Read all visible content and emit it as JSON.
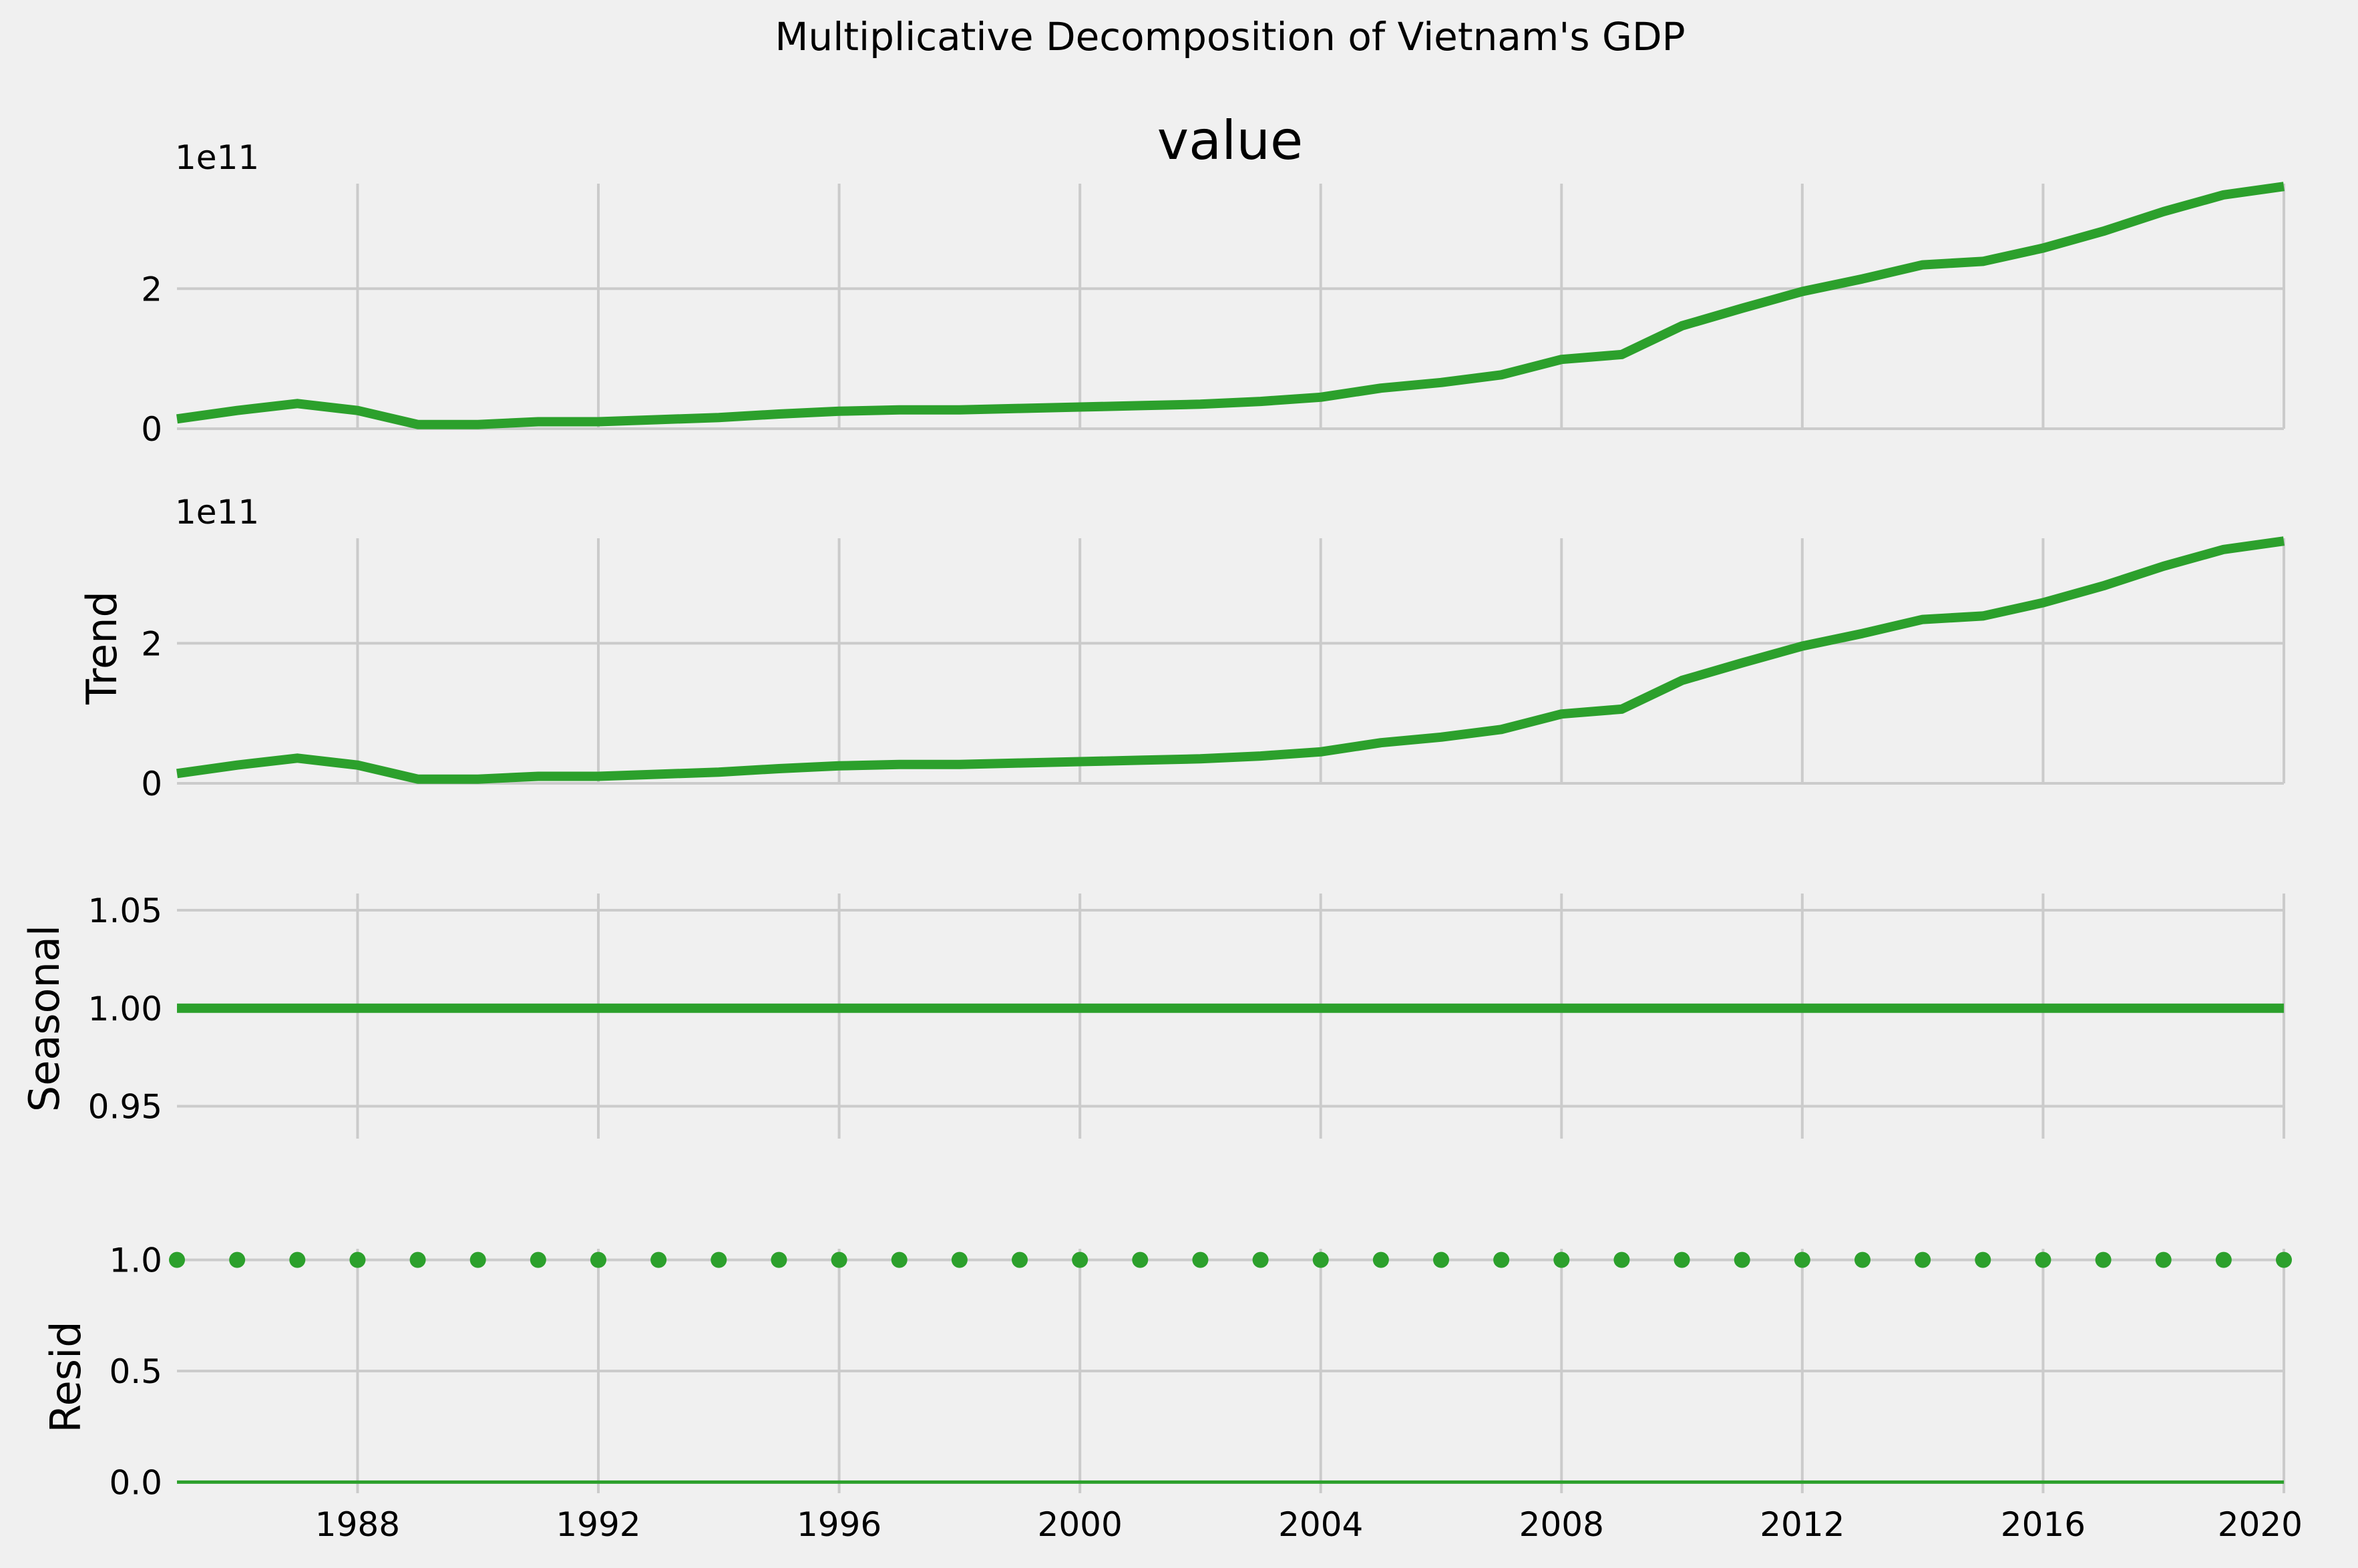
{
  "figure": {
    "suptitle": "Multiplicative Decomposition of Vietnam's GDP",
    "series_color": "#2ca02c",
    "background": "#f0f0f0",
    "grid_color": "#cbcbcb"
  },
  "chart_data": [
    {
      "type": "line",
      "title": "value",
      "ylabel": "",
      "offset_label": "1e11",
      "xlim": [
        1985,
        2020
      ],
      "ylim": [
        0,
        3.5
      ],
      "yticks": [
        0,
        2
      ],
      "ytick_labels": [
        "0",
        "2"
      ],
      "xticks": [
        1988,
        1992,
        1996,
        2000,
        2004,
        2008,
        2012,
        2016,
        2020
      ],
      "xtick_labels": [],
      "grid": true,
      "x": [
        1985,
        1986,
        1987,
        1988,
        1989,
        1990,
        1991,
        1992,
        1993,
        1994,
        1995,
        1996,
        1997,
        1998,
        1999,
        2000,
        2001,
        2002,
        2003,
        2004,
        2005,
        2006,
        2007,
        2008,
        2009,
        2010,
        2011,
        2012,
        2013,
        2014,
        2015,
        2016,
        2017,
        2018,
        2019,
        2020
      ],
      "y": [
        0.14,
        0.26,
        0.36,
        0.26,
        0.06,
        0.06,
        0.1,
        0.1,
        0.13,
        0.16,
        0.21,
        0.25,
        0.27,
        0.27,
        0.29,
        0.31,
        0.33,
        0.35,
        0.39,
        0.45,
        0.58,
        0.66,
        0.77,
        0.99,
        1.06,
        1.47,
        1.72,
        1.96,
        2.14,
        2.34,
        2.39,
        2.58,
        2.82,
        3.1,
        3.34,
        3.46
      ]
    },
    {
      "type": "line",
      "title": "",
      "ylabel": "Trend",
      "offset_label": "1e11",
      "xlim": [
        1985,
        2020
      ],
      "ylim": [
        0,
        3.5
      ],
      "yticks": [
        0,
        2
      ],
      "ytick_labels": [
        "0",
        "2"
      ],
      "xticks": [
        1988,
        1992,
        1996,
        2000,
        2004,
        2008,
        2012,
        2016,
        2020
      ],
      "xtick_labels": [],
      "grid": true,
      "x": [
        1985,
        1986,
        1987,
        1988,
        1989,
        1990,
        1991,
        1992,
        1993,
        1994,
        1995,
        1996,
        1997,
        1998,
        1999,
        2000,
        2001,
        2002,
        2003,
        2004,
        2005,
        2006,
        2007,
        2008,
        2009,
        2010,
        2011,
        2012,
        2013,
        2014,
        2015,
        2016,
        2017,
        2018,
        2019,
        2020
      ],
      "y": [
        0.14,
        0.26,
        0.36,
        0.26,
        0.06,
        0.06,
        0.1,
        0.1,
        0.13,
        0.16,
        0.21,
        0.25,
        0.27,
        0.27,
        0.29,
        0.31,
        0.33,
        0.35,
        0.39,
        0.45,
        0.58,
        0.66,
        0.77,
        0.99,
        1.06,
        1.47,
        1.72,
        1.96,
        2.14,
        2.34,
        2.39,
        2.58,
        2.82,
        3.1,
        3.34,
        3.46
      ]
    },
    {
      "type": "line",
      "title": "",
      "ylabel": "Seasonal",
      "offset_label": "",
      "xlim": [
        1985,
        2020
      ],
      "ylim": [
        0.9335,
        1.0585
      ],
      "yticks": [
        0.95,
        1.0,
        1.05
      ],
      "ytick_labels": [
        "0.95",
        "1.00",
        "1.05"
      ],
      "xticks": [
        1988,
        1992,
        1996,
        2000,
        2004,
        2008,
        2012,
        2016,
        2020
      ],
      "xtick_labels": [],
      "grid": true,
      "x": [
        1985,
        1986,
        1987,
        1988,
        1989,
        1990,
        1991,
        1992,
        1993,
        1994,
        1995,
        1996,
        1997,
        1998,
        1999,
        2000,
        2001,
        2002,
        2003,
        2004,
        2005,
        2006,
        2007,
        2008,
        2009,
        2010,
        2011,
        2012,
        2013,
        2014,
        2015,
        2016,
        2017,
        2018,
        2019,
        2020
      ],
      "y": [
        1,
        1,
        1,
        1,
        1,
        1,
        1,
        1,
        1,
        1,
        1,
        1,
        1,
        1,
        1,
        1,
        1,
        1,
        1,
        1,
        1,
        1,
        1,
        1,
        1,
        1,
        1,
        1,
        1,
        1,
        1,
        1,
        1,
        1,
        1,
        1
      ]
    },
    {
      "type": "scatter",
      "title": "",
      "ylabel": "Resid",
      "offset_label": "",
      "xlim": [
        1985,
        2020
      ],
      "ylim": [
        -0.05,
        1.05
      ],
      "yticks": [
        0.0,
        0.5,
        1.0
      ],
      "ytick_labels": [
        "0.0",
        "0.5",
        "1.0"
      ],
      "xticks": [
        1988,
        1992,
        1996,
        2000,
        2004,
        2008,
        2012,
        2016,
        2020
      ],
      "xtick_labels": [
        "1988",
        "1992",
        "1996",
        "2000",
        "2004",
        "2008",
        "2012",
        "2016",
        "2020"
      ],
      "grid": true,
      "x": [
        1985,
        1986,
        1987,
        1988,
        1989,
        1990,
        1991,
        1992,
        1993,
        1994,
        1995,
        1996,
        1997,
        1998,
        1999,
        2000,
        2001,
        2002,
        2003,
        2004,
        2005,
        2006,
        2007,
        2008,
        2009,
        2010,
        2011,
        2012,
        2013,
        2014,
        2015,
        2016,
        2017,
        2018,
        2019,
        2020
      ],
      "y": [
        1,
        1,
        1,
        1,
        1,
        1,
        1,
        1,
        1,
        1,
        1,
        1,
        1,
        1,
        1,
        1,
        1,
        1,
        1,
        1,
        1,
        1,
        1,
        1,
        1,
        1,
        1,
        1,
        1,
        1,
        1,
        1,
        1,
        1,
        1,
        1
      ],
      "zero_line": 0
    }
  ]
}
